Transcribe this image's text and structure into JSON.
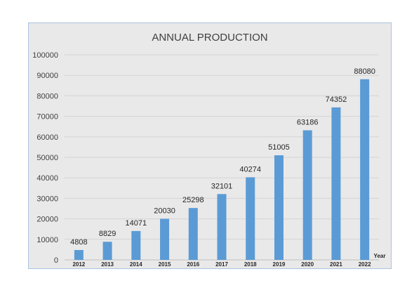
{
  "chart_data": {
    "type": "bar",
    "title": "ANNUAL PRODUCTION",
    "xlabel": "Year",
    "ylabel": "",
    "categories": [
      "2012",
      "2013",
      "2014",
      "2015",
      "2016",
      "2017",
      "2018",
      "2019",
      "2020",
      "2021",
      "2022"
    ],
    "values": [
      4808,
      8829,
      14071,
      20030,
      25298,
      32101,
      40274,
      51005,
      63186,
      74352,
      88080
    ],
    "ylim": [
      0,
      100000
    ],
    "yticks": [
      0,
      10000,
      20000,
      30000,
      40000,
      50000,
      60000,
      70000,
      80000,
      90000,
      100000
    ],
    "grid": true,
    "legend": "none",
    "data_labels": true,
    "bar_color": "#5b9bd5",
    "plot_background": "#e9e9e9",
    "frame_border_color": "#a9c4de"
  }
}
